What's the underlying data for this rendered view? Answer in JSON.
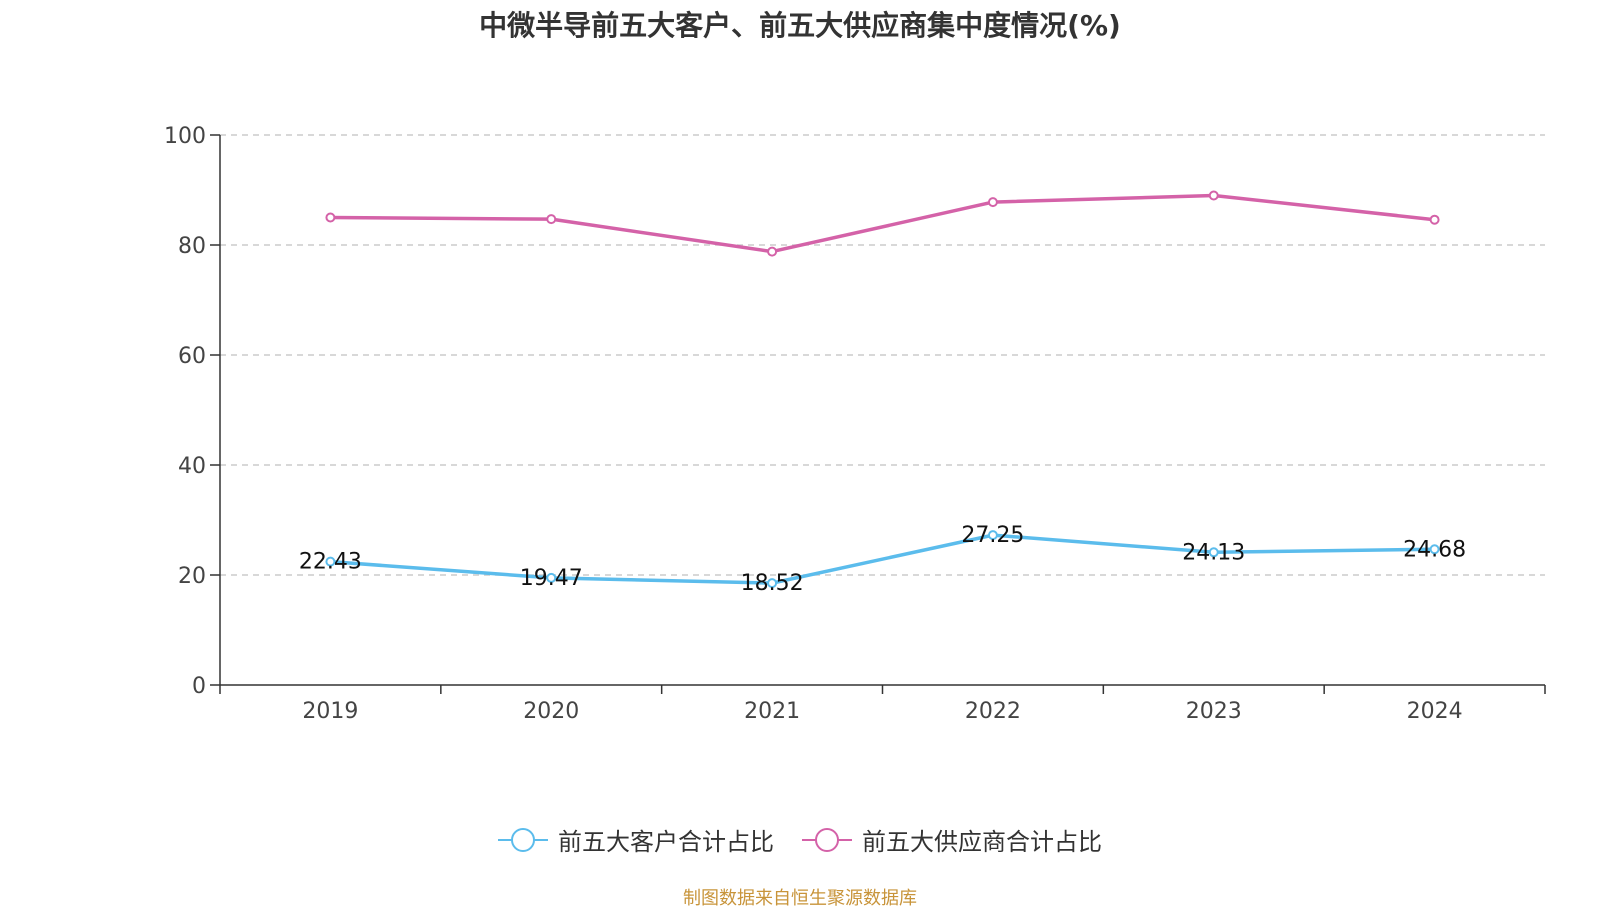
{
  "chart_data": {
    "type": "line",
    "title": "中微半导前五大客户、前五大供应商集中度情况(%)",
    "categories": [
      "2019",
      "2020",
      "2021",
      "2022",
      "2023",
      "2024"
    ],
    "ylim": [
      0,
      100
    ],
    "yticks": [
      0,
      20,
      40,
      60,
      80,
      100
    ],
    "grid": true,
    "legend_position": "bottom-center",
    "series": [
      {
        "name": "前五大客户合计占比",
        "color": "#5bbcec",
        "values": [
          22.43,
          19.47,
          18.52,
          27.25,
          24.13,
          24.68
        ],
        "labels": [
          "22.43",
          "19.47",
          "18.52",
          "27.25",
          "24.13",
          "24.68"
        ],
        "show_labels": true
      },
      {
        "name": "前五大供应商合计占比",
        "color": "#d462a8",
        "values": [
          85.0,
          84.7,
          78.8,
          87.8,
          89.0,
          84.6
        ],
        "show_labels": false
      }
    ]
  },
  "source": "制图数据来自恒生聚源数据库"
}
